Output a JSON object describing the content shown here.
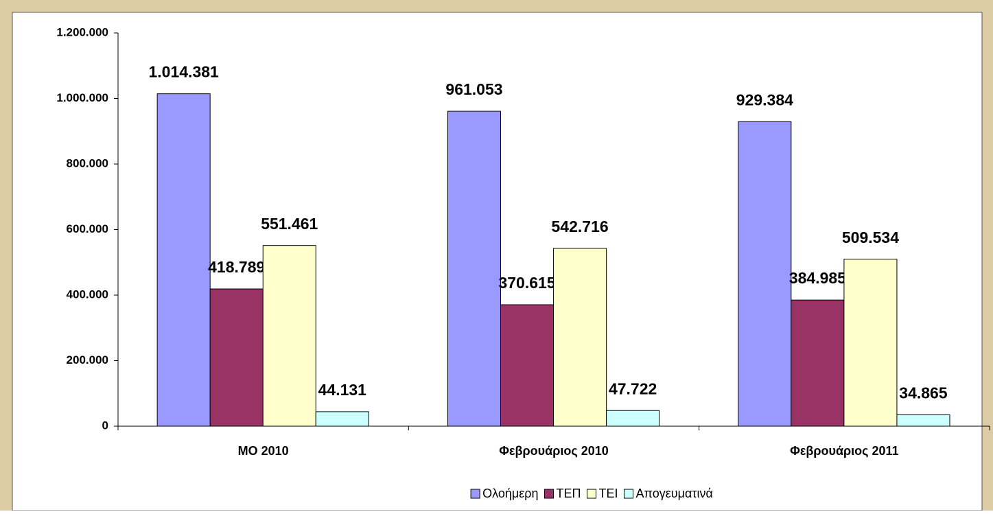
{
  "chart_data": {
    "type": "bar",
    "categories": [
      "ΜΟ 2010",
      "Φεβρουάριος 2010",
      "Φεβρουάριος 2011"
    ],
    "series": [
      {
        "name": "Ολοήμερη",
        "color": "#9999ff",
        "values": [
          1014381,
          961053,
          929384
        ],
        "value_labels": [
          "1.014.381",
          "961.053",
          "929.384"
        ]
      },
      {
        "name": "ΤΕΠ",
        "color": "#993366",
        "values": [
          418789,
          370615,
          384985
        ],
        "value_labels": [
          "418.789",
          "370.615",
          "384.985"
        ]
      },
      {
        "name": "ΤΕΙ",
        "color": "#ffffcc",
        "values": [
          551461,
          542716,
          509534
        ],
        "value_labels": [
          "551.461",
          "542.716",
          "509.534"
        ]
      },
      {
        "name": "Απογευματινά",
        "color": "#ccffff",
        "values": [
          44131,
          47722,
          34865
        ],
        "value_labels": [
          "44.131",
          "47.722",
          "34.865"
        ]
      }
    ],
    "ylim": [
      0,
      1200000
    ],
    "yticks": [
      0,
      {
        "value": 200000,
        "label": "200.000"
      },
      {
        "value": 400000,
        "label": "400.000"
      },
      {
        "value": 600000,
        "label": "600.000"
      },
      {
        "value": 800000,
        "label": "800.000"
      },
      {
        "value": 1000000,
        "label": "1.000.000"
      },
      {
        "value": 1200000,
        "label": "1.200.000"
      }
    ],
    "grid": false,
    "legend": "bottom"
  }
}
